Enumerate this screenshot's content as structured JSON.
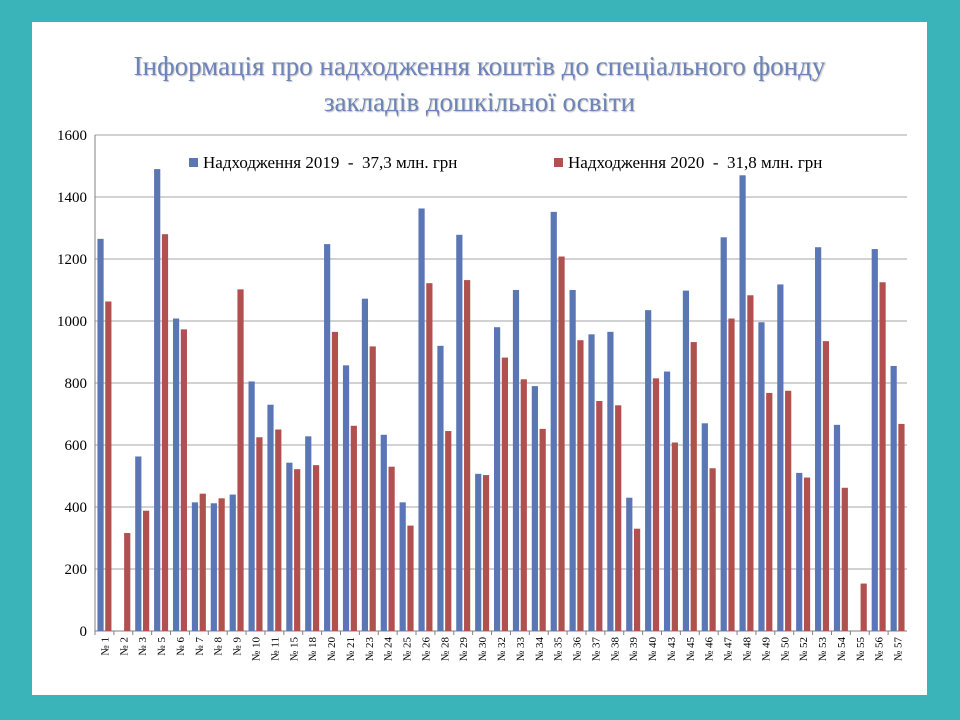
{
  "colors": {
    "background": "#3ab4b9",
    "panel": "#ffffff",
    "title": "#6c84b8",
    "series_2019": "#5b76b5",
    "series_2020": "#b0504f",
    "grid": "#a6a6a6"
  },
  "title": {
    "line1": "Інформація про надходження коштів до спеціального фонду",
    "line2": "закладів дошкільної освіти"
  },
  "chart_data": {
    "type": "bar",
    "categories": [
      "№ 1",
      "№ 2",
      "№ 3",
      "№ 5",
      "№ 6",
      "№ 7",
      "№ 8",
      "№ 9",
      "№ 10",
      "№ 11",
      "№ 15",
      "№ 18",
      "№ 20",
      "№ 21",
      "№ 23",
      "№ 24",
      "№ 25",
      "№ 26",
      "№ 28",
      "№ 29",
      "№ 30",
      "№ 32",
      "№ 33",
      "№ 34",
      "№ 35",
      "№ 36",
      "№ 37",
      "№ 38",
      "№ 39",
      "№ 40",
      "№ 43",
      "№ 45",
      "№ 46",
      "№ 47",
      "№ 48",
      "№ 49",
      "№ 50",
      "№ 52",
      "№ 53",
      "№ 54",
      "№ 55",
      "№ 56",
      "№ 57"
    ],
    "series": [
      {
        "name": "Надходження 2019  -  37,3 млн. грн",
        "values": [
          1265,
          0,
          563,
          1490,
          1008,
          415,
          412,
          440,
          805,
          730,
          543,
          628,
          1248,
          857,
          1072,
          633,
          415,
          1363,
          920,
          1278,
          507,
          980,
          1100,
          790,
          1352,
          1100,
          957,
          965,
          430,
          1035,
          837,
          1098,
          670,
          1270,
          1470,
          996,
          1118,
          510,
          1238,
          665,
          0,
          1232,
          855
        ]
      },
      {
        "name": "Надходження 2020  -  31,8 млн. грн",
        "values": [
          1063,
          316,
          388,
          1280,
          973,
          443,
          428,
          1102,
          625,
          650,
          522,
          535,
          965,
          662,
          918,
          530,
          340,
          1122,
          645,
          1132,
          503,
          882,
          812,
          652,
          1208,
          938,
          742,
          728,
          330,
          815,
          608,
          932,
          525,
          1008,
          1083,
          768,
          775,
          495,
          935,
          462,
          153,
          1125,
          668
        ]
      }
    ],
    "ylim": [
      0,
      1600
    ],
    "yticks": [
      0,
      200,
      400,
      600,
      800,
      1000,
      1200,
      1400,
      1600
    ],
    "grid": true,
    "legend_position": "top-inside"
  }
}
